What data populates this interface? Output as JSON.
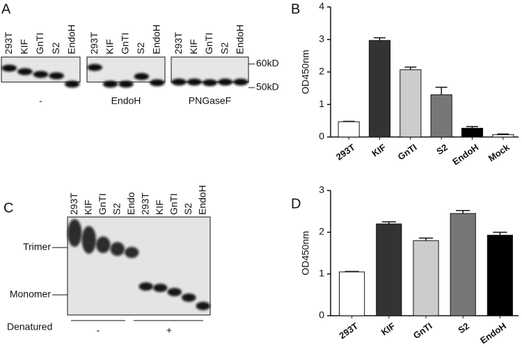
{
  "panels": {
    "A": {
      "label": "A",
      "blots": [
        {
          "lanes": [
            "293T",
            "KIF",
            "GnTI",
            "S2",
            "EndoH"
          ],
          "treatment": "-"
        },
        {
          "lanes": [
            "293T",
            "KIF",
            "GnTI",
            "S2",
            "EndoH"
          ],
          "treatment": "EndoH"
        },
        {
          "lanes": [
            "293T",
            "KIF",
            "GnTI",
            "S2",
            "EndoH"
          ],
          "treatment": "PNGaseF"
        }
      ],
      "markers": [
        "60kD",
        "50kD"
      ]
    },
    "C": {
      "label": "C",
      "lanes": [
        "293T",
        "KIF",
        "GnTI",
        "S2",
        "Endo",
        "293T",
        "KIF",
        "GnTI",
        "S2",
        "EndoH"
      ],
      "bands": [
        "Trimer",
        "Monomer"
      ],
      "condition_label": "Denatured",
      "conditions": [
        "-",
        "+"
      ]
    }
  },
  "chart_data": [
    {
      "type": "bar",
      "panel_label": "B",
      "y_label": "OD450nm",
      "categories": [
        "293T",
        "KIF",
        "GnTI",
        "S2",
        "EndoH",
        "Mock"
      ],
      "values": [
        0.47,
        2.97,
        2.07,
        1.3,
        0.27,
        0.07
      ],
      "errors": [
        0.01,
        0.08,
        0.08,
        0.23,
        0.05,
        0.02
      ],
      "colors": [
        "#ffffff",
        "#333333",
        "#cccccc",
        "#777777",
        "#000000",
        "#ffffff"
      ],
      "ylim": [
        0,
        4
      ],
      "yticks": [
        0,
        1,
        2,
        3,
        4
      ]
    },
    {
      "type": "bar",
      "panel_label": "D",
      "y_label": "OD450nm",
      "categories": [
        "293T",
        "KIF",
        "GnTI",
        "S2",
        "EndoH"
      ],
      "values": [
        1.05,
        2.2,
        1.8,
        2.45,
        1.93
      ],
      "errors": [
        0.01,
        0.05,
        0.06,
        0.07,
        0.07
      ],
      "colors": [
        "#ffffff",
        "#333333",
        "#cccccc",
        "#777777",
        "#000000"
      ],
      "ylim": [
        0,
        3
      ],
      "yticks": [
        0,
        1,
        2,
        3
      ]
    }
  ]
}
